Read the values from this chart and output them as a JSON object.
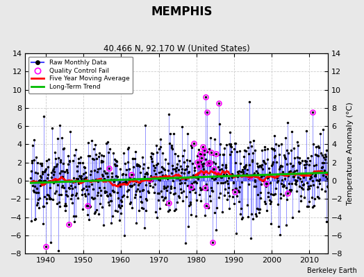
{
  "title": "MEMPHIS",
  "subtitle": "40.466 N, 92.170 W (United States)",
  "ylabel": "Temperature Anomaly (°C)",
  "credit": "Berkeley Earth",
  "year_start": 1936,
  "year_end": 2014,
  "ylim": [
    -8,
    14
  ],
  "yticks": [
    -8,
    -6,
    -4,
    -2,
    0,
    2,
    4,
    6,
    8,
    10,
    12,
    14
  ],
  "xticks": [
    1940,
    1950,
    1960,
    1970,
    1980,
    1990,
    2000,
    2010
  ],
  "colors": {
    "raw_line": "#4444ff",
    "raw_dot": "#000000",
    "qc_fail": "#ff00ff",
    "moving_avg": "#ff0000",
    "trend": "#00bb00",
    "plot_bg": "#ffffff",
    "fig_bg": "#e8e8e8",
    "grid": "#cccccc"
  },
  "seed": 17
}
